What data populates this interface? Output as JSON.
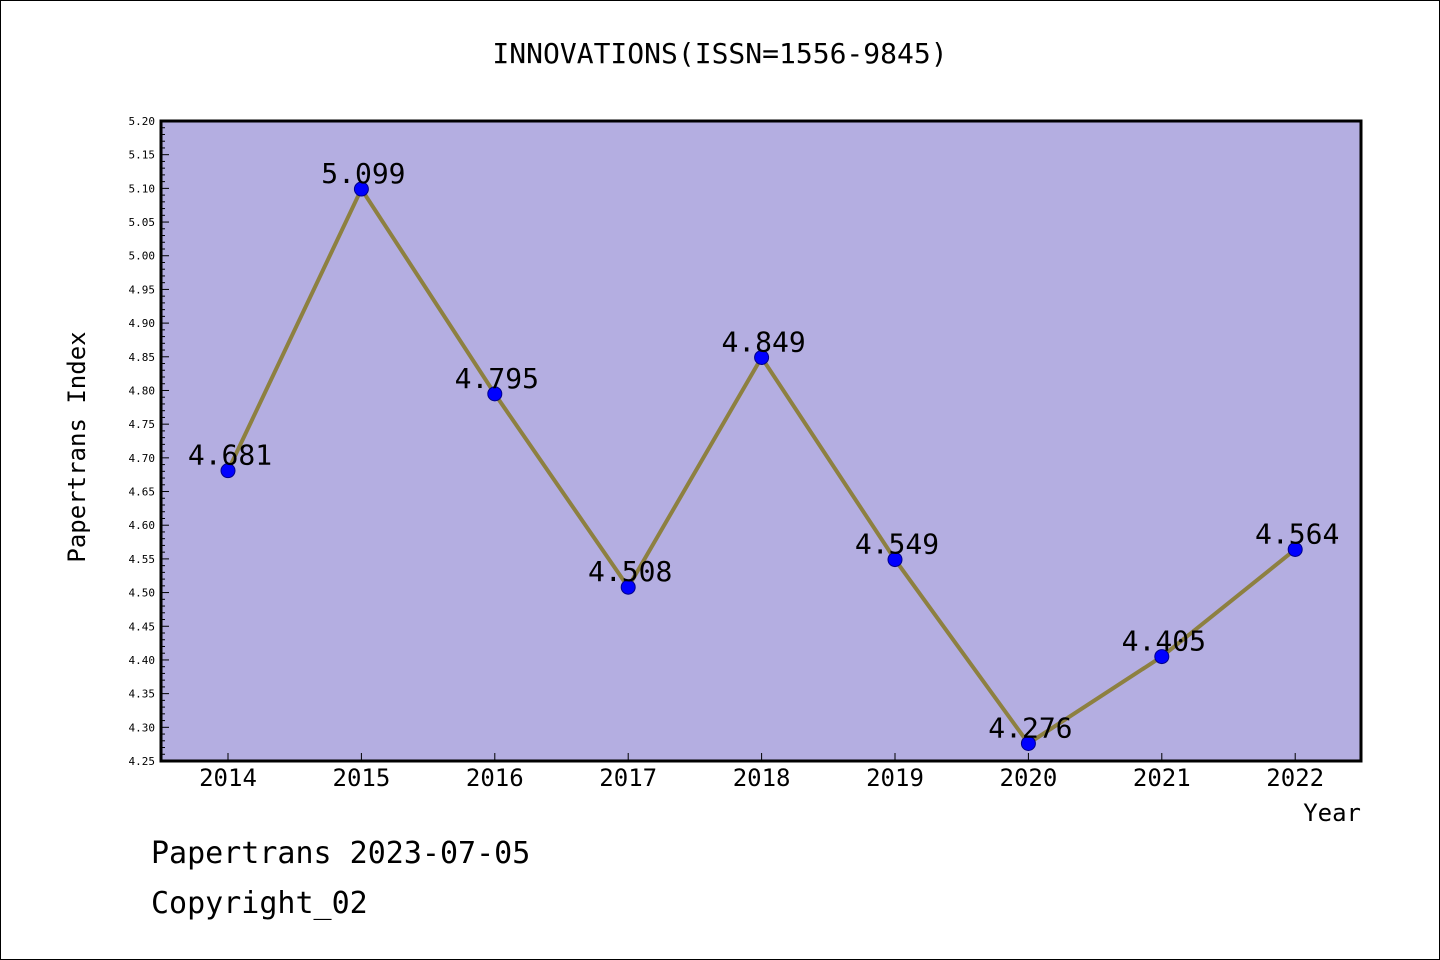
{
  "chart_data": {
    "type": "line",
    "title": "INNOVATIONS(ISSN=1556-9845)",
    "xlabel": "Year",
    "ylabel": "Papertrans Index",
    "categories": [
      "2014",
      "2015",
      "2016",
      "2017",
      "2018",
      "2019",
      "2020",
      "2021",
      "2022"
    ],
    "values": [
      4.681,
      5.099,
      4.795,
      4.508,
      4.849,
      4.549,
      4.276,
      4.405,
      4.564
    ],
    "data_labels": [
      "4.681",
      "5.099",
      "4.795",
      "4.508",
      "4.849",
      "4.549",
      "4.276",
      "4.405",
      "4.564"
    ],
    "ylim": [
      4.25,
      5.2
    ],
    "ytick_labels": [
      "4.25",
      "4.30",
      "4.35",
      "4.40",
      "4.45",
      "4.50",
      "4.55",
      "4.60",
      "4.65",
      "4.70",
      "4.75",
      "4.80",
      "4.85",
      "4.90",
      "4.95",
      "5.00",
      "5.05",
      "5.10",
      "5.15",
      "5.20"
    ],
    "grid": false,
    "colors": {
      "plot_background": "#b4aee1",
      "line": "#8d8040",
      "marker_fill": "#0000ff",
      "marker_edge": "#00008b"
    }
  },
  "footer": {
    "date_text": "Papertrans 2023-07-05",
    "copyright_text": "Copyright_02"
  }
}
